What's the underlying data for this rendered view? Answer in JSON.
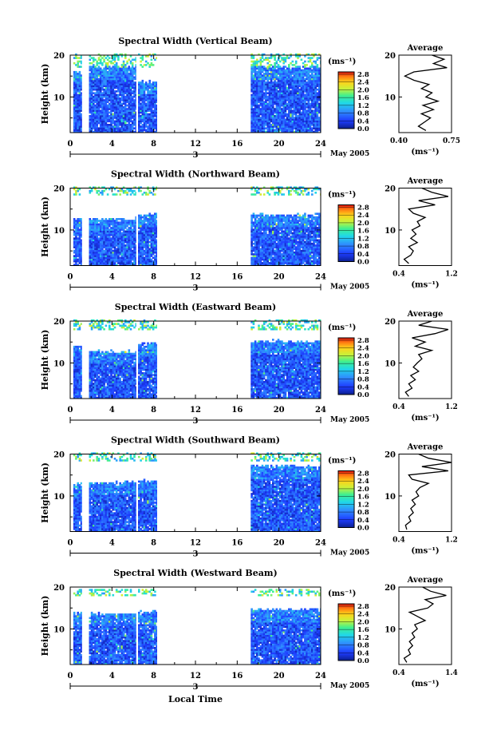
{
  "figure": {
    "x_axis_title": "Local Time",
    "date_label": "May 2005",
    "day_label": "3",
    "colorbar_unit": "(ms⁻¹)",
    "average_title": "Average",
    "average_unit": "(ms⁻¹)"
  },
  "chart_data": [
    {
      "type": "heatmap",
      "title": "Spectral Width (Vertical Beam)",
      "ylabel": "Height (km)",
      "xlabel": "Local Time",
      "xlim": [
        0,
        24
      ],
      "xticks": [
        0,
        4,
        8,
        12,
        16,
        20,
        24
      ],
      "ylim": [
        1.5,
        20
      ],
      "yticks": [
        10,
        20
      ],
      "data_intervals": [
        [
          0.3,
          1.1
        ],
        [
          1.8,
          6.3
        ],
        [
          6.5,
          8.3
        ],
        [
          17.3,
          24
        ]
      ],
      "data_top_km": [
        16,
        17,
        13.5,
        17
      ],
      "upper_layer_km": [
        17,
        20
      ],
      "colorbar": {
        "ticks": [
          2.8,
          2.4,
          2.0,
          1.6,
          1.2,
          0.8,
          0.4,
          0.0
        ]
      },
      "average": {
        "xlim": [
          0.4,
          0.75
        ],
        "xticks": [
          0.4,
          0.75
        ],
        "heights_km": [
          2,
          3,
          4,
          5,
          6,
          7,
          8,
          9,
          10,
          11,
          12,
          13,
          14,
          15,
          16,
          17,
          18,
          19,
          20
        ],
        "values": [
          0.58,
          0.53,
          0.57,
          0.61,
          0.55,
          0.63,
          0.56,
          0.66,
          0.58,
          0.62,
          0.55,
          0.6,
          0.5,
          0.44,
          0.5,
          0.72,
          0.63,
          0.7,
          0.62
        ]
      }
    },
    {
      "type": "heatmap",
      "title": "Spectral Width (Northward Beam)",
      "ylabel": "Height (km)",
      "xlabel": "Local Time",
      "xlim": [
        0,
        24
      ],
      "xticks": [
        0,
        4,
        8,
        12,
        16,
        20,
        24
      ],
      "ylim": [
        1.5,
        20
      ],
      "yticks": [
        10,
        20
      ],
      "data_intervals": [
        [
          0.3,
          1.1
        ],
        [
          1.8,
          6.3
        ],
        [
          6.5,
          8.3
        ],
        [
          17.3,
          24
        ]
      ],
      "data_top_km": [
        12.5,
        12.5,
        13.5,
        13.5
      ],
      "upper_layer_km": [
        18,
        20
      ],
      "colorbar": {
        "ticks": [
          2.8,
          2.4,
          2.0,
          1.6,
          1.2,
          0.8,
          0.4,
          0.0
        ]
      },
      "average": {
        "xlim": [
          0.4,
          1.2
        ],
        "xticks": [
          0.4,
          1.2
        ],
        "heights_km": [
          2,
          3,
          4,
          5,
          6,
          7,
          8,
          9,
          10,
          11,
          12,
          13,
          14,
          15,
          16,
          17,
          18,
          19,
          20
        ],
        "values": [
          0.55,
          0.48,
          0.58,
          0.62,
          0.55,
          0.68,
          0.58,
          0.66,
          0.6,
          0.72,
          0.68,
          0.8,
          0.62,
          0.55,
          0.95,
          0.7,
          1.15,
          0.9,
          0.75
        ]
      }
    },
    {
      "type": "heatmap",
      "title": "Spectral Width (Eastward Beam)",
      "ylabel": "Height (km)",
      "xlabel": "Local Time",
      "xlim": [
        0,
        24
      ],
      "xticks": [
        0,
        4,
        8,
        12,
        16,
        20,
        24
      ],
      "ylim": [
        1.5,
        20
      ],
      "yticks": [
        10,
        20
      ],
      "data_intervals": [
        [
          0.3,
          1.1
        ],
        [
          1.8,
          6.3
        ],
        [
          6.5,
          8.3
        ],
        [
          17.3,
          24
        ]
      ],
      "data_top_km": [
        14,
        12.5,
        14.5,
        15
      ],
      "upper_layer_km": [
        17.5,
        20
      ],
      "colorbar": {
        "ticks": [
          2.8,
          2.4,
          2.0,
          1.6,
          1.2,
          0.8,
          0.4,
          0.0
        ]
      },
      "average": {
        "xlim": [
          0.4,
          1.2
        ],
        "xticks": [
          0.4,
          1.2
        ],
        "heights_km": [
          2,
          3,
          4,
          5,
          6,
          7,
          8,
          9,
          10,
          11,
          12,
          13,
          14,
          15,
          16,
          17,
          18,
          19,
          20
        ],
        "values": [
          0.55,
          0.5,
          0.6,
          0.55,
          0.65,
          0.58,
          0.7,
          0.62,
          0.68,
          0.75,
          0.7,
          0.9,
          0.65,
          0.8,
          0.6,
          0.95,
          1.15,
          0.7,
          0.9
        ]
      }
    },
    {
      "type": "heatmap",
      "title": "Spectral Width (Southward Beam)",
      "ylabel": "Height (km)",
      "xlabel": "Local Time",
      "xlim": [
        0,
        24
      ],
      "xticks": [
        0,
        4,
        8,
        12,
        16,
        20,
        24
      ],
      "ylim": [
        1.5,
        20
      ],
      "yticks": [
        10,
        20
      ],
      "data_intervals": [
        [
          0.3,
          1.1
        ],
        [
          1.8,
          6.3
        ],
        [
          6.5,
          8.3
        ],
        [
          17.3,
          24
        ]
      ],
      "data_top_km": [
        12.5,
        13,
        13.5,
        17
      ],
      "upper_layer_km": [
        18,
        20
      ],
      "colorbar": {
        "ticks": [
          2.8,
          2.4,
          2.0,
          1.6,
          1.2,
          0.8,
          0.4,
          0.0
        ]
      },
      "average": {
        "xlim": [
          0.4,
          1.2
        ],
        "xticks": [
          0.4,
          1.2
        ],
        "heights_km": [
          2,
          3,
          4,
          5,
          6,
          7,
          8,
          9,
          10,
          11,
          12,
          13,
          14,
          15,
          16,
          17,
          18,
          19,
          20
        ],
        "values": [
          0.52,
          0.5,
          0.58,
          0.55,
          0.62,
          0.58,
          0.65,
          0.6,
          0.7,
          0.66,
          0.72,
          0.85,
          0.6,
          0.55,
          1.15,
          0.75,
          1.2,
          0.85,
          0.7
        ]
      }
    },
    {
      "type": "heatmap",
      "title": "Spectral Width (Westward Beam)",
      "ylabel": "Height (km)",
      "xlabel": "Local Time",
      "xlim": [
        0,
        24
      ],
      "xticks": [
        0,
        4,
        8,
        12,
        16,
        20,
        24
      ],
      "ylim": [
        1.5,
        20
      ],
      "yticks": [
        10,
        20
      ],
      "data_intervals": [
        [
          0.3,
          1.1
        ],
        [
          1.8,
          6.3
        ],
        [
          6.5,
          8.3
        ],
        [
          17.3,
          24
        ]
      ],
      "data_top_km": [
        13.5,
        13.5,
        14,
        14.5
      ],
      "upper_layer_km": [
        17.5,
        19.5
      ],
      "colorbar": {
        "ticks": [
          2.8,
          2.4,
          2.0,
          1.6,
          1.2,
          0.8,
          0.4,
          0.0
        ]
      },
      "average": {
        "xlim": [
          0.4,
          1.4
        ],
        "xticks": [
          0.4,
          1.4
        ],
        "heights_km": [
          2,
          3,
          4,
          5,
          6,
          7,
          8,
          9,
          10,
          11,
          12,
          13,
          14,
          15,
          16,
          17,
          18,
          19,
          20
        ],
        "values": [
          0.55,
          0.5,
          0.62,
          0.58,
          0.66,
          0.6,
          0.7,
          0.65,
          0.75,
          0.7,
          0.9,
          0.75,
          0.6,
          0.95,
          1.05,
          0.9,
          1.3,
          1.0,
          0.85
        ]
      }
    }
  ]
}
